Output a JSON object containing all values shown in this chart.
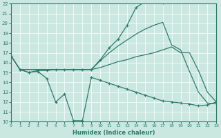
{
  "background_color": "#cbe8e0",
  "line_color": "#2d7a68",
  "xlabel": "Humidex (Indice chaleur)",
  "xlim": [
    0,
    23
  ],
  "ylim": [
    10,
    22
  ],
  "yticks": [
    10,
    11,
    12,
    13,
    14,
    15,
    16,
    17,
    18,
    19,
    20,
    21,
    22
  ],
  "xticks": [
    0,
    1,
    2,
    3,
    4,
    5,
    6,
    7,
    8,
    9,
    10,
    11,
    12,
    13,
    14,
    15,
    16,
    17,
    18,
    19,
    20,
    21,
    22,
    23
  ],
  "line1_x": [
    0,
    1,
    2,
    3,
    4,
    5,
    6,
    7,
    8,
    9,
    10,
    11,
    12,
    13,
    14,
    15,
    16,
    17,
    18,
    19,
    20,
    21,
    22,
    23
  ],
  "line1_y": [
    16.7,
    15.3,
    15.0,
    15.1,
    14.4,
    12.0,
    12.8,
    10.1,
    10.1,
    14.5,
    14.2,
    13.9,
    13.6,
    13.3,
    13.0,
    12.7,
    12.4,
    12.1,
    12.0,
    11.9,
    11.8,
    11.6,
    11.7,
    12.0
  ],
  "line2_x": [
    1,
    2,
    3,
    4,
    5,
    6,
    7,
    8,
    9,
    10,
    11,
    12,
    13,
    14,
    15,
    16,
    17
  ],
  "line2_y": [
    15.3,
    15.0,
    15.2,
    15.2,
    15.3,
    15.3,
    15.3,
    15.3,
    15.3,
    16.3,
    17.5,
    18.4,
    19.8,
    21.6,
    22.2,
    22.2,
    22.1
  ],
  "line3_x": [
    0,
    1,
    9,
    10,
    11,
    12,
    13,
    14,
    15,
    16,
    17,
    18,
    19,
    20,
    21,
    22,
    23
  ],
  "line3_y": [
    16.7,
    15.3,
    15.3,
    15.5,
    15.8,
    16.1,
    16.3,
    16.6,
    16.8,
    17.0,
    17.3,
    17.6,
    17.0,
    17.0,
    15.2,
    13.0,
    12.0
  ],
  "line4_x": [
    0,
    1,
    9,
    10,
    11,
    12,
    13,
    14,
    15,
    16,
    17,
    18,
    19,
    20,
    21,
    22,
    23
  ],
  "line4_y": [
    16.7,
    15.3,
    15.3,
    16.2,
    17.0,
    17.7,
    18.3,
    18.9,
    19.4,
    19.8,
    20.1,
    17.8,
    17.3,
    15.1,
    13.0,
    11.9,
    11.8
  ]
}
